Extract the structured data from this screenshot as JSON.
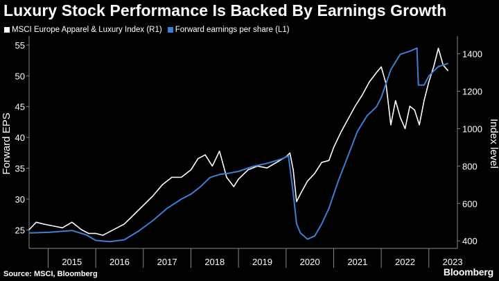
{
  "title": "Luxury Stock Performance Is Backed By Earnings Growth",
  "legend": [
    {
      "label": "MSCI Europe Apparel & Luxury Index  (R1)",
      "color": "#ffffff"
    },
    {
      "label": "Forward earnings per share (L1)",
      "color": "#3b7fd6"
    }
  ],
  "source": "Source: MSCI, Bloomberg",
  "brand": "Bloomberg",
  "chart_data": {
    "type": "line",
    "title": "Luxury Stock Performance Is Backed By Earnings Growth",
    "left_axis": {
      "label": "Forward EPS",
      "range": [
        22,
        56
      ],
      "ticks": [
        25,
        30,
        35,
        40,
        45,
        50,
        55
      ]
    },
    "right_axis": {
      "label": "Index level",
      "range": [
        360,
        1480
      ],
      "ticks": [
        400,
        600,
        800,
        1000,
        1200,
        1400
      ]
    },
    "x_axis": {
      "range": [
        2014.6,
        2023.6
      ],
      "tick_labels": [
        "2015",
        "2016",
        "2017",
        "2018",
        "2019",
        "2020",
        "2021",
        "2022",
        "2023"
      ]
    },
    "grid": false,
    "legend_position": "top-left",
    "series": [
      {
        "name": "MSCI Europe Apparel & Luxury Index  (R1)",
        "axis": "right",
        "color": "#ffffff",
        "x": [
          2014.6,
          2014.75,
          2014.9,
          2015.1,
          2015.3,
          2015.5,
          2015.7,
          2015.85,
          2016.0,
          2016.15,
          2016.3,
          2016.45,
          2016.6,
          2016.8,
          2017.0,
          2017.2,
          2017.4,
          2017.6,
          2017.8,
          2018.0,
          2018.15,
          2018.3,
          2018.45,
          2018.6,
          2018.75,
          2018.9,
          2019.0,
          2019.2,
          2019.4,
          2019.6,
          2019.8,
          2020.0,
          2020.08,
          2020.15,
          2020.22,
          2020.3,
          2020.45,
          2020.6,
          2020.75,
          2020.9,
          2021.0,
          2021.15,
          2021.3,
          2021.45,
          2021.6,
          2021.75,
          2021.9,
          2022.0,
          2022.1,
          2022.2,
          2022.3,
          2022.4,
          2022.5,
          2022.6,
          2022.7,
          2022.8,
          2022.9,
          2023.0,
          2023.1,
          2023.2,
          2023.3,
          2023.4
        ],
        "y": [
          460,
          500,
          490,
          480,
          470,
          500,
          460,
          440,
          440,
          430,
          450,
          470,
          490,
          540,
          590,
          640,
          700,
          740,
          740,
          780,
          840,
          860,
          800,
          880,
          740,
          690,
          730,
          780,
          800,
          790,
          820,
          850,
          870,
          780,
          610,
          650,
          720,
          760,
          820,
          830,
          900,
          980,
          1050,
          1120,
          1180,
          1250,
          1300,
          1330,
          1240,
          1020,
          1150,
          1060,
          1000,
          1120,
          1100,
          1020,
          1150,
          1250,
          1330,
          1430,
          1340,
          1310
        ]
      },
      {
        "name": "Forward earnings per share (L1)",
        "axis": "left",
        "color": "#3b7fd6",
        "x": [
          2014.6,
          2015.0,
          2015.5,
          2015.8,
          2016.0,
          2016.3,
          2016.6,
          2016.9,
          2017.2,
          2017.5,
          2017.8,
          2018.0,
          2018.2,
          2018.4,
          2018.6,
          2018.8,
          2019.0,
          2019.3,
          2019.6,
          2019.9,
          2020.05,
          2020.15,
          2020.22,
          2020.3,
          2020.45,
          2020.6,
          2020.75,
          2020.9,
          2021.1,
          2021.3,
          2021.5,
          2021.7,
          2021.9,
          2022.0,
          2022.2,
          2022.4,
          2022.6,
          2022.75,
          2022.78,
          2022.9,
          2023.0,
          2023.2,
          2023.4
        ],
        "y": [
          24.5,
          24.6,
          24.9,
          24.2,
          23.3,
          23.1,
          23.4,
          24.8,
          26.5,
          28.5,
          30.0,
          30.8,
          32.0,
          33.5,
          34.0,
          34.2,
          34.5,
          35.3,
          35.8,
          36.5,
          37.0,
          31.0,
          26.0,
          24.5,
          23.5,
          24.0,
          26.0,
          28.5,
          33.0,
          37.0,
          41.0,
          43.5,
          45.0,
          46.5,
          51.0,
          53.5,
          54.0,
          54.5,
          48.5,
          48.5,
          50.0,
          51.5,
          52.0
        ]
      }
    ]
  }
}
